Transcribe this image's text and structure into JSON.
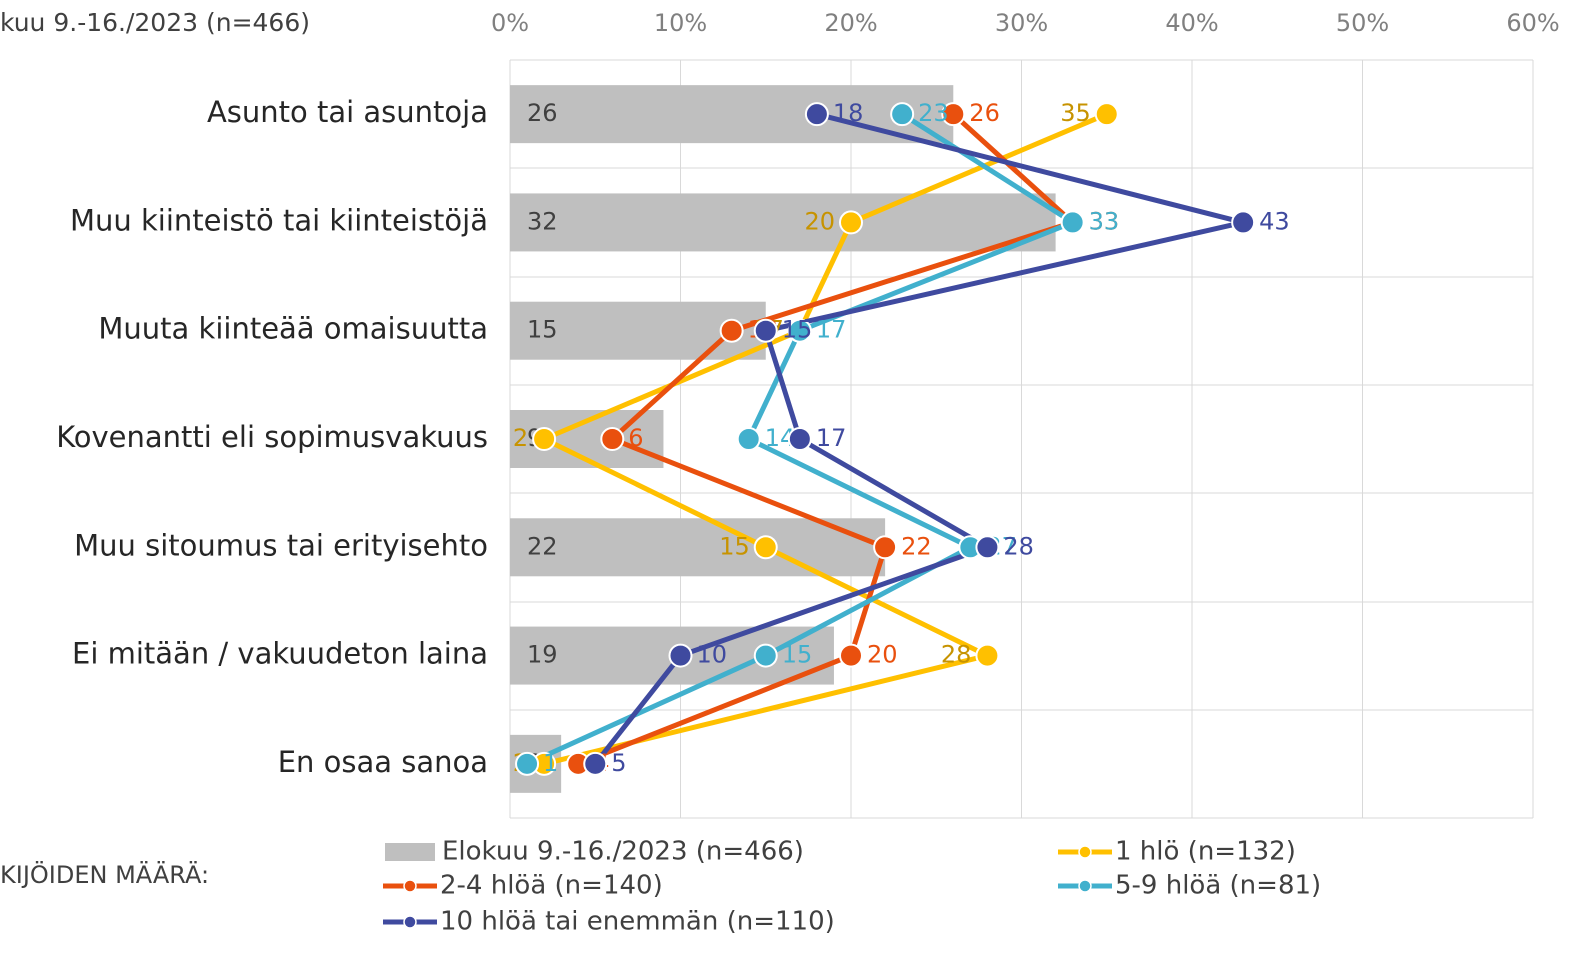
{
  "chart_data": {
    "type": "bar-line",
    "header": "kuu 9.-16./2023 (n=466)",
    "legend_title": "KIJÖIDEN MÄÄRÄ:",
    "categories": [
      "Asunto tai asuntoja",
      "Muu kiinteistö tai kiinteistöjä",
      "Muuta kiinteää omaisuutta",
      "Kovenantti eli sopimusvakuus",
      "Muu sitoumus tai erityisehto",
      "Ei mitään / vakuudeton laina",
      "En osaa sanoa"
    ],
    "xlim": [
      0,
      60
    ],
    "xticks": [
      {
        "value": 0,
        "label": "0%"
      },
      {
        "value": 10,
        "label": "10%"
      },
      {
        "value": 20,
        "label": "20%"
      },
      {
        "value": 30,
        "label": "30%"
      },
      {
        "value": 40,
        "label": "40%"
      },
      {
        "value": 50,
        "label": "50%"
      },
      {
        "value": 60,
        "label": "60%"
      }
    ],
    "grid": true,
    "series": [
      {
        "name": "Elokuu 9.-16./2023 (n=466)",
        "type": "bar",
        "color": "#bfbfbf",
        "label_color": "#404040",
        "values": [
          26,
          32,
          15,
          9,
          22,
          19,
          3
        ]
      },
      {
        "name": "1 hlö (n=132)",
        "type": "line",
        "color": "#ffc000",
        "label_color": "#c79300",
        "values": [
          35,
          20,
          17,
          2,
          15,
          28,
          2
        ]
      },
      {
        "name": "2-4 hlöä (n=140)",
        "type": "line",
        "color": "#e9500e",
        "label_color": "#e9500e",
        "values": [
          26,
          33,
          13,
          6,
          22,
          20,
          4
        ]
      },
      {
        "name": "5-9 hlöä (n=81)",
        "type": "line",
        "color": "#41b0cd",
        "label_color": "#41b0cd",
        "values": [
          23,
          33,
          17,
          14,
          27,
          15,
          1
        ]
      },
      {
        "name": "10 hlöä tai enemmän (n=110)",
        "type": "line",
        "color": "#3f4a9f",
        "label_color": "#3f4a9f",
        "values": [
          18,
          43,
          15,
          17,
          28,
          10,
          5
        ]
      }
    ]
  }
}
